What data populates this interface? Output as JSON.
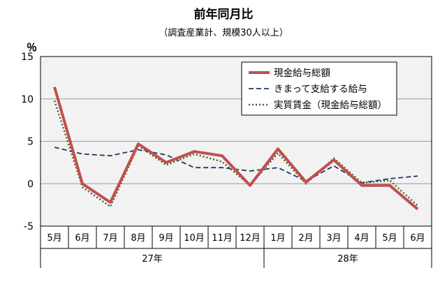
{
  "chart_data": {
    "type": "line",
    "title": "前年同月比",
    "subtitle": "（調査産業計、規模30人以上）",
    "ylabel": "％",
    "ylim": [
      -5,
      15
    ],
    "yticks": [
      -5,
      0,
      5,
      10,
      15
    ],
    "grid": true,
    "legend_position": "top-right",
    "categories": [
      "5月",
      "6月",
      "7月",
      "8月",
      "9月",
      "10月",
      "11月",
      "12月",
      "1月",
      "2月",
      "3月",
      "4月",
      "5月",
      "6月"
    ],
    "groups": [
      {
        "label": "27年",
        "span": 8
      },
      {
        "label": "28年",
        "span": 6
      }
    ],
    "series": [
      {
        "name": "現金給与総額",
        "color": "#c0504d",
        "style": "solid",
        "values": [
          11.4,
          0.0,
          -2.2,
          4.7,
          2.5,
          3.8,
          3.3,
          -0.2,
          4.1,
          0.2,
          2.8,
          -0.2,
          -0.2,
          -3.0
        ]
      },
      {
        "name": "きまって支給する給与",
        "color": "#1f3864",
        "style": "dash",
        "values": [
          4.3,
          3.5,
          3.3,
          4.0,
          3.4,
          1.9,
          1.9,
          1.5,
          1.9,
          0.3,
          2.1,
          0.1,
          0.6,
          0.9
        ]
      },
      {
        "name": "実質賃金（現金給与総額）",
        "color": "#4f5b2a",
        "style": "dot",
        "values": [
          9.8,
          -0.4,
          -2.7,
          4.5,
          2.2,
          3.5,
          2.6,
          -0.2,
          3.6,
          0.0,
          3.0,
          0.1,
          0.4,
          -2.6
        ]
      }
    ]
  }
}
